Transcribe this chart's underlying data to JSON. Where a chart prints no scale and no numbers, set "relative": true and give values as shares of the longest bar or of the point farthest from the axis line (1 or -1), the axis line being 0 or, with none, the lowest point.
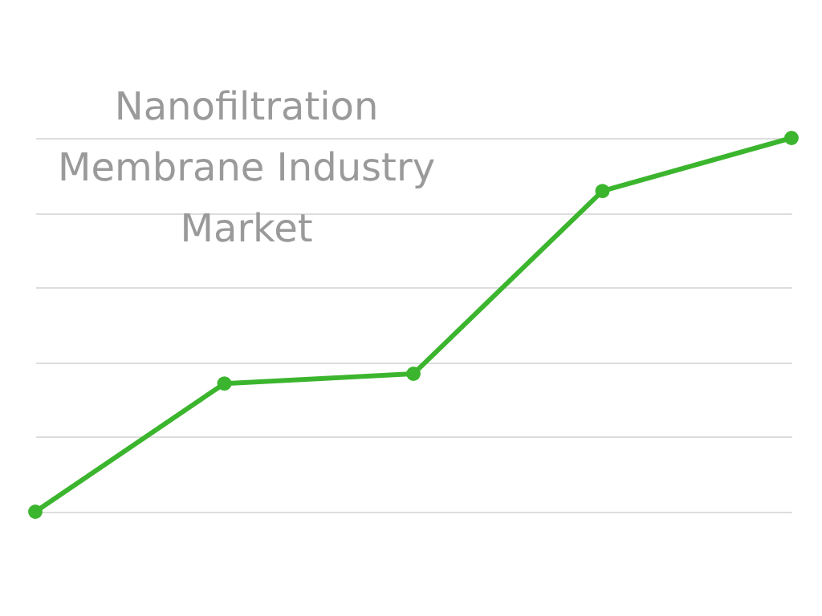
{
  "chart_data": {
    "type": "line",
    "title": "Nanofiltration Membrane Industry Market",
    "relative": true,
    "categories": [
      null,
      null,
      null,
      null,
      null
    ],
    "series": [
      {
        "color": "#3cb52e",
        "values": [
          0,
          0.343,
          0.369,
          0.858,
          1
        ]
      }
    ],
    "grid": "y",
    "marker": "circle",
    "line_style": "solid",
    "legend": false
  }
}
